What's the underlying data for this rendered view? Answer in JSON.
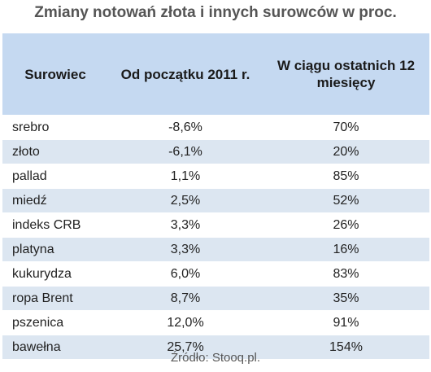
{
  "title": "Zmiany notowań złota i innych surowców w proc.",
  "columns": [
    "Surowiec",
    "Od początku 2011 r.",
    "W ciągu ostatnich 12 miesięcy"
  ],
  "rows": [
    {
      "name": "srebro",
      "ytd": "-8,6%",
      "m12": "70%"
    },
    {
      "name": "złoto",
      "ytd": "-6,1%",
      "m12": "20%"
    },
    {
      "name": "pallad",
      "ytd": "1,1%",
      "m12": "85%"
    },
    {
      "name": "miedź",
      "ytd": "2,5%",
      "m12": "52%"
    },
    {
      "name": "indeks CRB",
      "ytd": "3,3%",
      "m12": "26%"
    },
    {
      "name": "platyna",
      "ytd": "3,3%",
      "m12": "16%"
    },
    {
      "name": "kukurydza",
      "ytd": "6,0%",
      "m12": "83%"
    },
    {
      "name": "ropa Brent",
      "ytd": "8,7%",
      "m12": "35%"
    },
    {
      "name": "pszenica",
      "ytd": "12,0%",
      "m12": "91%"
    },
    {
      "name": "bawełna",
      "ytd": "25,7%",
      "m12": "154%"
    }
  ],
  "source": "Źródło: Stooq.pl.",
  "colors": {
    "header_bg": "#c5d9f1",
    "stripe_bg": "#dce6f1",
    "title_color": "#555555"
  }
}
